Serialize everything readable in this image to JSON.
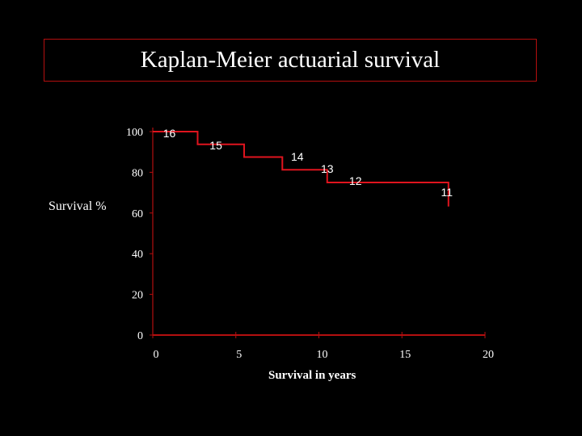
{
  "chart_data": {
    "type": "line",
    "title": "Kaplan-Meier actuarial survival",
    "xlabel": "Survival in years",
    "ylabel": "Survival %",
    "xlim": [
      0,
      20
    ],
    "ylim": [
      0,
      100
    ],
    "xticks": [
      "0",
      "5",
      "10",
      "15",
      "20"
    ],
    "yticks": [
      "0",
      "20",
      "40",
      "60",
      "80",
      "100"
    ],
    "grid": false,
    "series": [
      {
        "step": true,
        "x": [
          0,
          2.7,
          5.5,
          7.8,
          10.5,
          17.8
        ],
        "y": [
          100,
          93.75,
          87.5,
          81.25,
          75,
          68.75
        ],
        "end_x": 17.8
      }
    ],
    "data_labels": [
      {
        "text": "16",
        "x": 1,
        "y": 100
      },
      {
        "text": "15",
        "x": 3.8,
        "y": 94
      },
      {
        "text": "14",
        "x": 8.7,
        "y": 88.5
      },
      {
        "text": "13",
        "x": 10.5,
        "y": 82.5
      },
      {
        "text": "12",
        "x": 12.2,
        "y": 76.5
      },
      {
        "text": "11",
        "x": 17.7,
        "y": 71
      }
    ],
    "colors": {
      "background": "#000000",
      "line": "#e0141e",
      "axis": "#b40f0f",
      "text": "#ffffff"
    }
  }
}
